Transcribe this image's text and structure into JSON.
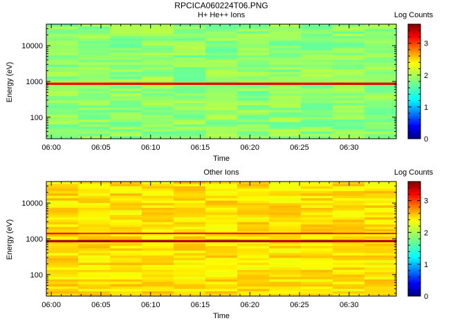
{
  "figure_title": "RPCICA060224T06.PNG",
  "chart_data": [
    {
      "type": "heatmap",
      "title": "H+ He++ Ions",
      "xlabel": "Time",
      "ylabel": "Energy (eV)",
      "x_ticks": [
        "06:00",
        "06:05",
        "06:10",
        "06:15",
        "06:20",
        "06:25",
        "06:30"
      ],
      "x_range": [
        "05:59:30",
        "06:34:45"
      ],
      "y_scale": "log",
      "y_ticks": [
        100,
        1000,
        10000
      ],
      "y_tick_labels": [
        "100",
        "1000",
        "10000"
      ],
      "ylim": [
        25,
        40000
      ],
      "colorbar": {
        "label": "Log Counts",
        "range": [
          0,
          3.6
        ],
        "ticks": [
          0,
          1,
          2,
          3
        ],
        "colormap": "jet"
      },
      "background_log_counts": 1.85,
      "bands": [
        {
          "energy_low_eV": 800,
          "energy_high_eV": 930,
          "log_counts": 3.2
        }
      ]
    },
    {
      "type": "heatmap",
      "title": "Other Ions",
      "xlabel": "Time",
      "ylabel": "Energy (eV)",
      "x_ticks": [
        "06:00",
        "06:05",
        "06:10",
        "06:15",
        "06:20",
        "06:25",
        "06:30"
      ],
      "x_range": [
        "05:59:30",
        "06:34:45"
      ],
      "y_scale": "log",
      "y_ticks": [
        100,
        1000,
        10000
      ],
      "y_tick_labels": [
        "100",
        "1000",
        "10000"
      ],
      "ylim": [
        25,
        40000
      ],
      "colorbar": {
        "label": "Log Counts",
        "range": [
          0,
          3.6
        ],
        "ticks": [
          0,
          1,
          2,
          3
        ],
        "colormap": "jet"
      },
      "background_log_counts": 2.35,
      "bands": [
        {
          "energy_low_eV": 1350,
          "energy_high_eV": 1480,
          "log_counts": 3.1
        },
        {
          "energy_low_eV": 800,
          "energy_high_eV": 930,
          "log_counts": 3.45
        }
      ]
    }
  ]
}
